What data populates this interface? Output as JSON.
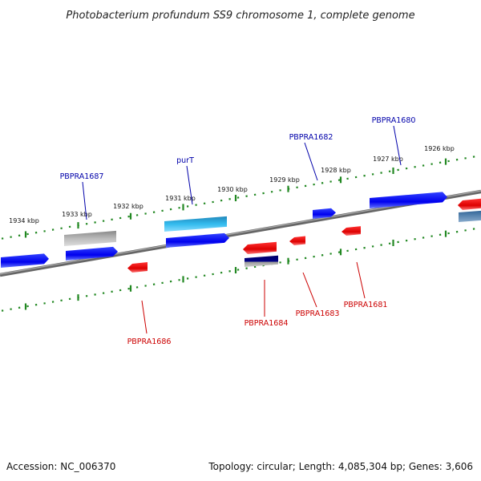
{
  "title": "Photobacterium profundum SS9 chromosome 1, complete genome",
  "footer": {
    "accession": "Accession: NC_006370",
    "summary": "Topology: circular; Length: 4,085,304 bp; Genes: 3,606"
  },
  "scale_labels": [
    "1934 kbp",
    "1933 kbp",
    "1932 kbp",
    "1931 kbp",
    "1930 kbp",
    "1929 kbp",
    "1928 kbp",
    "1927 kbp",
    "1926 kbp"
  ],
  "gene_labels": [
    {
      "text": "PBPRA1687",
      "strand": "forward"
    },
    {
      "text": "purT",
      "strand": "forward"
    },
    {
      "text": "PBPRA1682",
      "strand": "forward"
    },
    {
      "text": "PBPRA1680",
      "strand": "forward"
    },
    {
      "text": "PBPRA1686",
      "strand": "reverse"
    },
    {
      "text": "PBPRA1684",
      "strand": "reverse"
    },
    {
      "text": "PBPRA1683",
      "strand": "reverse"
    },
    {
      "text": "PBPRA1681",
      "strand": "reverse"
    }
  ],
  "colors": {
    "forward_label": "#0000aa",
    "reverse_label": "#cc0000",
    "forward_gene": "#0000ee",
    "reverse_gene": "#ee0000",
    "rna_gene": "#22aadd",
    "pseudo_gene": "#aaaaaa",
    "navy_gene": "#000080",
    "steel_gene": "#4477aa",
    "ticks": "#228822",
    "backbone": "#777777"
  }
}
